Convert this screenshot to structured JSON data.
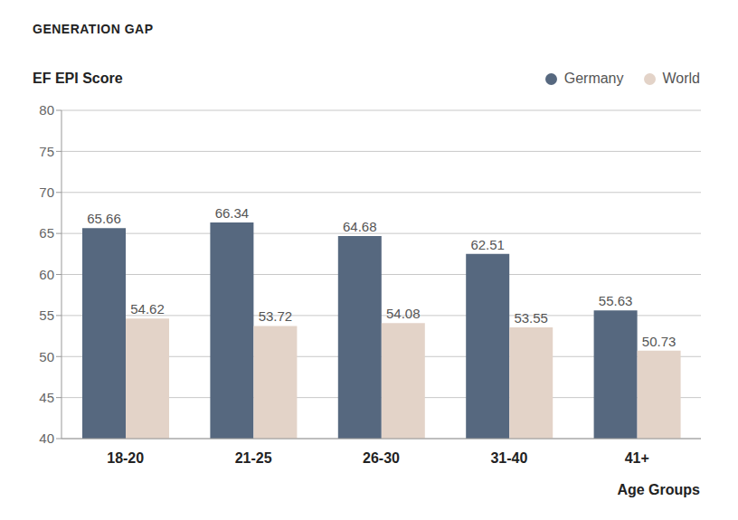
{
  "chart_data": {
    "type": "bar",
    "title": "GENERATION GAP",
    "y_label": "EF EPI Score",
    "x_label": "Age Groups",
    "categories": [
      "18-20",
      "21-25",
      "26-30",
      "31-40",
      "41+"
    ],
    "series": [
      {
        "name": "Germany",
        "color": "#56687f",
        "values": [
          65.66,
          66.34,
          64.68,
          62.51,
          55.63
        ]
      },
      {
        "name": "World",
        "color": "#e3d3c8",
        "values": [
          54.62,
          53.72,
          54.08,
          53.55,
          50.73
        ]
      }
    ],
    "ylim": [
      40,
      80
    ],
    "yticks": [
      40,
      45,
      50,
      55,
      60,
      65,
      70,
      75,
      80
    ],
    "grid": true,
    "legend": "top right",
    "data_labels": true
  }
}
